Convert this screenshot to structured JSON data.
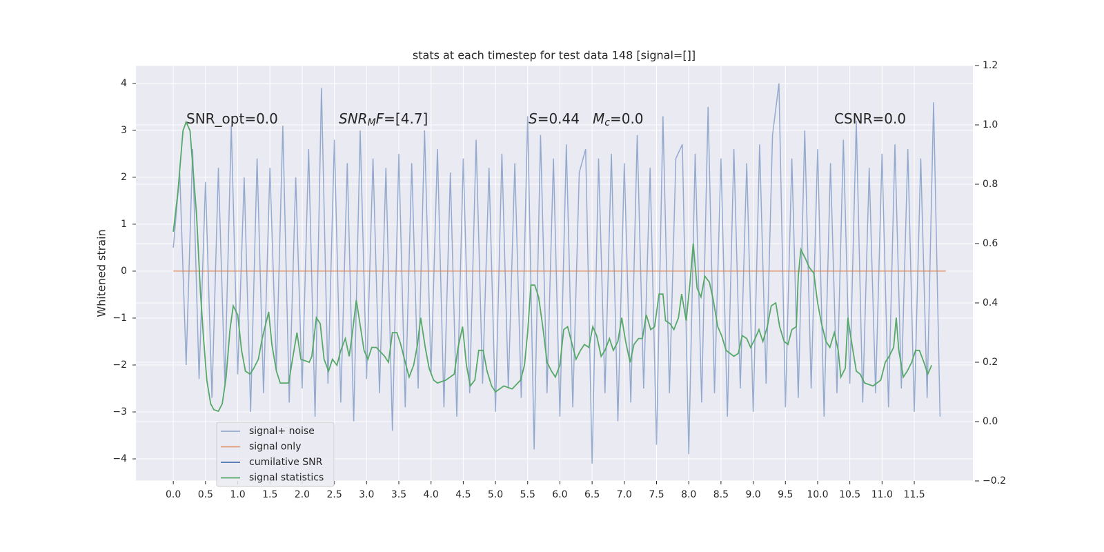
{
  "chart_data": {
    "type": "line",
    "title": "stats at each timestep for test data 148 [signal=[]]",
    "ylabel": "Whitened strain",
    "xlim": [
      -0.58,
      12.41
    ],
    "ylim": [
      -4.47,
      4.38
    ],
    "y2lim": [
      -0.2,
      1.2
    ],
    "xticks": [
      {
        "value": 0,
        "label": "0.0"
      },
      0.5,
      {
        "value": 1,
        "label": "1.0"
      },
      1.5,
      {
        "value": 2,
        "label": "2.0"
      },
      2.5,
      {
        "value": 3,
        "label": "3.0"
      },
      3.5,
      {
        "value": 4,
        "label": "4.0"
      },
      4.5,
      {
        "value": 5,
        "label": "5.0"
      },
      5.5,
      {
        "value": 6,
        "label": "6.0"
      },
      6.5,
      {
        "value": 7,
        "label": "7.0"
      },
      7.5,
      {
        "value": 8,
        "label": "8.0"
      },
      8.5,
      {
        "value": 9,
        "label": "9.0"
      },
      9.5,
      {
        "value": 10,
        "label": "10.0"
      },
      10.5,
      {
        "value": 11,
        "label": "11.0"
      },
      11.5
    ],
    "yticks": [
      {
        "value": -4,
        "label": "−4"
      },
      {
        "value": -3,
        "label": "−3"
      },
      {
        "value": -2,
        "label": "−2"
      },
      {
        "value": -1,
        "label": "−1"
      },
      0,
      1,
      2,
      3,
      4
    ],
    "y2ticks": [
      {
        "value": -0.2,
        "label": "−0.2"
      },
      {
        "value": 0,
        "label": "0.0"
      },
      0.2,
      0.4,
      0.6,
      0.8,
      {
        "value": 1,
        "label": "1.0"
      },
      1.2
    ],
    "grid": true,
    "legend": "lower left",
    "annotations": [
      [
        {
          "text": "SNR_opt=0.0",
          "style": "normal"
        }
      ],
      [
        {
          "text": "SNR",
          "style": "italic"
        },
        {
          "text": "M",
          "style": "sub"
        },
        {
          "text": "F",
          "style": "italic"
        },
        {
          "text": "=[4.7]",
          "style": "normal"
        }
      ],
      [
        {
          "text": "S",
          "style": "italic"
        },
        {
          "text": "=0.44",
          "style": "normal"
        }
      ],
      [
        {
          "text": "M",
          "style": "italic"
        },
        {
          "text": "c",
          "style": "sub"
        },
        {
          "text": "=0.0",
          "style": "normal"
        }
      ],
      [
        {
          "text": "CSNR=0.0",
          "style": "normal"
        }
      ]
    ],
    "series": [
      {
        "name": "signal+ noise",
        "color": "#4c72b0",
        "x": [
          0,
          0.1,
          0.2,
          0.3,
          0.4,
          0.5,
          0.6,
          0.7,
          0.8,
          0.9,
          1,
          1.1,
          1.2,
          1.3,
          1.4,
          1.5,
          1.6,
          1.7,
          1.8,
          1.9,
          2,
          2.1,
          2.2,
          2.3,
          2.4,
          2.5,
          2.6,
          2.7,
          2.8,
          2.9,
          3,
          3.1,
          3.2,
          3.3,
          3.4,
          3.5,
          3.6,
          3.7,
          3.8,
          3.9,
          4,
          4.1,
          4.2,
          4.3,
          4.4,
          4.5,
          4.6,
          4.7,
          4.8,
          4.9,
          5,
          5.1,
          5.2,
          5.3,
          5.4,
          5.5,
          5.6,
          5.7,
          5.8,
          5.9,
          6,
          6.1,
          6.2,
          6.3,
          6.4,
          6.5,
          6.6,
          6.7,
          6.8,
          6.9,
          7,
          7.1,
          7.2,
          7.3,
          7.4,
          7.5,
          7.6,
          7.7,
          7.8,
          7.9,
          8,
          8.1,
          8.2,
          8.3,
          8.4,
          8.5,
          8.6,
          8.7,
          8.8,
          8.9,
          9,
          9.1,
          9.2,
          9.3,
          9.4,
          9.5,
          9.6,
          9.7,
          9.8,
          9.9,
          10,
          10.1,
          10.2,
          10.3,
          10.4,
          10.5,
          10.6,
          10.7,
          10.8,
          10.9,
          11,
          11.1,
          11.2,
          11.3,
          11.4,
          11.5,
          11.6,
          11.7,
          11.8,
          11.9
        ],
        "values": [
          0.5,
          2.1,
          -2.0,
          2.6,
          -2.3,
          1.9,
          -2.7,
          2.2,
          -2.4,
          3.1,
          -2.2,
          2.0,
          -3.0,
          2.4,
          -2.6,
          2.2,
          -2.1,
          3.1,
          -2.8,
          2.0,
          -2.5,
          2.6,
          -3.1,
          3.9,
          -2.4,
          2.8,
          -2.8,
          2.3,
          -3.2,
          3.0,
          -2.3,
          2.4,
          -2.6,
          2.2,
          -3.4,
          2.5,
          -2.9,
          2.3,
          -2.5,
          3.0,
          -2.2,
          2.6,
          -2.9,
          2.1,
          -3.1,
          2.4,
          -2.6,
          2.8,
          -2.4,
          2.2,
          -3.0,
          2.5,
          -2.5,
          2.3,
          -2.7,
          3.3,
          -3.8,
          2.9,
          -2.6,
          2.4,
          -3.1,
          2.7,
          -2.9,
          2.1,
          2.6,
          -4.1,
          2.4,
          -2.6,
          2.5,
          -3.2,
          2.3,
          -2.8,
          2.9,
          -2.5,
          2.2,
          -3.7,
          3.3,
          -2.6,
          2.4,
          2.7,
          -3.9,
          2.5,
          -2.8,
          3.5,
          -2.6,
          2.4,
          -3.1,
          2.6,
          -2.5,
          2.3,
          -3.0,
          2.7,
          -2.4,
          2.9,
          4.0,
          -2.9,
          2.4,
          -2.7,
          3.0,
          -2.5,
          2.6,
          -3.1,
          2.3,
          -2.6,
          2.8,
          -2.4,
          3.2,
          -2.8,
          2.2,
          -2.6,
          2.5,
          -2.9,
          2.7,
          -2.5,
          2.6,
          -3.0,
          2.4,
          -2.7,
          3.6,
          -3.1
        ]
      },
      {
        "name": "signal only",
        "color": "#dd8452",
        "x": [
          0,
          11.99
        ],
        "values": [
          0,
          0
        ]
      },
      {
        "name": "cumilative SNR",
        "color": "#4c72b0",
        "x": [],
        "values": []
      },
      {
        "name": "signal statistics",
        "color": "#55a868",
        "axis": "y2",
        "x": [
          0.0,
          0.07,
          0.15,
          0.2,
          0.26,
          0.31,
          0.36,
          0.42,
          0.47,
          0.52,
          0.58,
          0.63,
          0.7,
          0.76,
          0.82,
          0.88,
          0.93,
          1.0,
          1.06,
          1.12,
          1.19,
          1.25,
          1.32,
          1.38,
          1.48,
          1.53,
          1.6,
          1.66,
          1.79,
          1.85,
          1.92,
          1.98,
          2.11,
          2.15,
          2.22,
          2.28,
          2.34,
          2.41,
          2.47,
          2.54,
          2.6,
          2.67,
          2.73,
          2.78,
          2.84,
          2.89,
          2.96,
          3.02,
          3.08,
          3.15,
          3.28,
          3.34,
          3.4,
          3.47,
          3.53,
          3.6,
          3.66,
          3.73,
          3.79,
          3.84,
          3.91,
          3.97,
          4.04,
          4.1,
          4.23,
          4.36,
          4.42,
          4.49,
          4.55,
          4.61,
          4.68,
          4.74,
          4.81,
          4.87,
          4.94,
          5.0,
          5.13,
          5.26,
          5.39,
          5.45,
          5.5,
          5.55,
          5.61,
          5.67,
          5.74,
          5.8,
          5.87,
          5.93,
          6.0,
          6.06,
          6.12,
          6.19,
          6.25,
          6.32,
          6.38,
          6.45,
          6.51,
          6.57,
          6.64,
          6.7,
          6.77,
          6.83,
          6.9,
          6.96,
          7.02,
          7.09,
          7.15,
          7.22,
          7.28,
          7.34,
          7.41,
          7.47,
          7.54,
          7.6,
          7.64,
          7.71,
          7.77,
          7.84,
          7.89,
          7.96,
          8.02,
          8.07,
          8.13,
          8.19,
          8.25,
          8.32,
          8.38,
          8.45,
          8.51,
          8.58,
          8.7,
          8.77,
          8.83,
          8.9,
          8.96,
          9.03,
          9.09,
          9.15,
          9.22,
          9.28,
          9.35,
          9.41,
          9.48,
          9.54,
          9.6,
          9.67,
          9.7,
          9.74,
          9.81,
          9.87,
          9.94,
          10.0,
          10.06,
          10.13,
          10.19,
          10.26,
          10.32,
          10.36,
          10.43,
          10.47,
          10.54,
          10.6,
          10.66,
          10.73,
          10.86,
          10.98,
          11.05,
          11.11,
          11.18,
          11.22,
          11.26,
          11.33,
          11.39,
          11.46,
          11.52,
          11.58,
          11.65,
          11.71,
          11.77
        ],
        "values": [
          0.64,
          0.77,
          0.98,
          1.01,
          0.98,
          0.84,
          0.7,
          0.44,
          0.28,
          0.14,
          0.06,
          0.04,
          0.035,
          0.06,
          0.15,
          0.31,
          0.39,
          0.36,
          0.24,
          0.17,
          0.16,
          0.18,
          0.21,
          0.28,
          0.37,
          0.26,
          0.17,
          0.13,
          0.13,
          0.21,
          0.3,
          0.21,
          0.2,
          0.22,
          0.35,
          0.33,
          0.21,
          0.17,
          0.21,
          0.19,
          0.24,
          0.28,
          0.22,
          0.3,
          0.41,
          0.34,
          0.24,
          0.21,
          0.25,
          0.25,
          0.22,
          0.2,
          0.3,
          0.3,
          0.26,
          0.2,
          0.15,
          0.19,
          0.26,
          0.35,
          0.25,
          0.18,
          0.14,
          0.13,
          0.14,
          0.16,
          0.25,
          0.32,
          0.19,
          0.12,
          0.14,
          0.24,
          0.24,
          0.17,
          0.12,
          0.1,
          0.12,
          0.11,
          0.14,
          0.19,
          0.3,
          0.46,
          0.46,
          0.42,
          0.31,
          0.2,
          0.17,
          0.15,
          0.19,
          0.31,
          0.32,
          0.26,
          0.21,
          0.24,
          0.26,
          0.25,
          0.32,
          0.29,
          0.22,
          0.24,
          0.28,
          0.24,
          0.27,
          0.35,
          0.27,
          0.2,
          0.26,
          0.28,
          0.28,
          0.36,
          0.31,
          0.32,
          0.43,
          0.43,
          0.34,
          0.33,
          0.31,
          0.35,
          0.43,
          0.34,
          0.47,
          0.6,
          0.45,
          0.42,
          0.49,
          0.47,
          0.41,
          0.32,
          0.29,
          0.24,
          0.22,
          0.23,
          0.29,
          0.28,
          0.25,
          0.28,
          0.31,
          0.27,
          0.32,
          0.39,
          0.4,
          0.32,
          0.27,
          0.26,
          0.31,
          0.32,
          0.49,
          0.58,
          0.55,
          0.52,
          0.5,
          0.4,
          0.33,
          0.27,
          0.25,
          0.3,
          0.24,
          0.15,
          0.18,
          0.35,
          0.25,
          0.17,
          0.16,
          0.13,
          0.12,
          0.14,
          0.2,
          0.22,
          0.25,
          0.35,
          0.24,
          0.15,
          0.17,
          0.2,
          0.24,
          0.24,
          0.2,
          0.16,
          0.19
        ]
      }
    ]
  }
}
